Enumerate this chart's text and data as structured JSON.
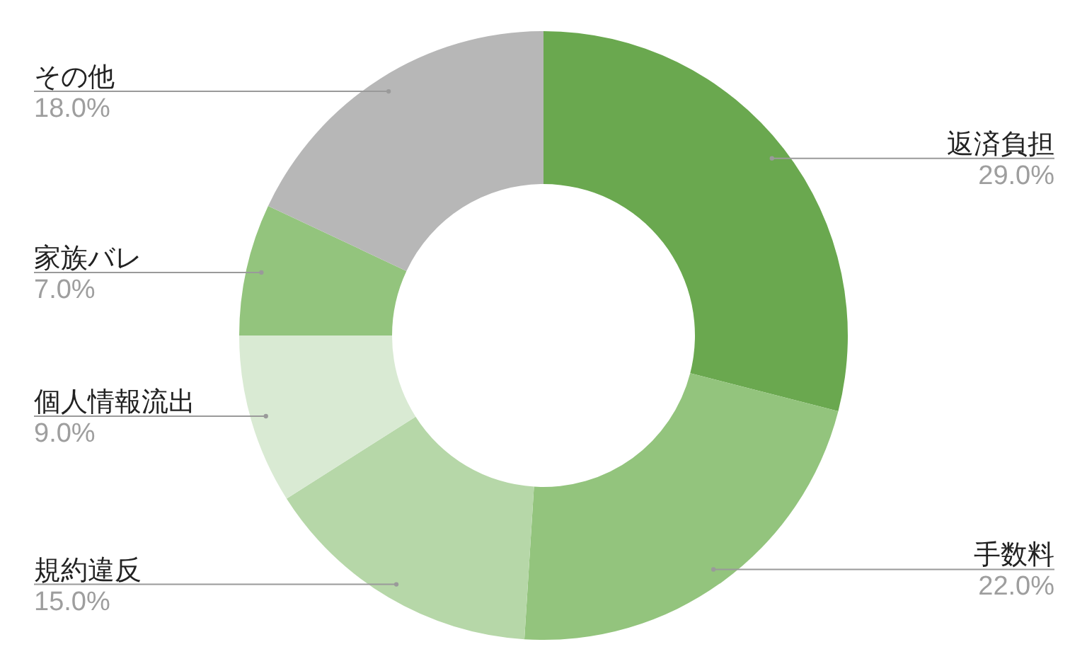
{
  "chart_data": {
    "type": "donut",
    "categories": [
      "返済負担",
      "手数料",
      "規約違反",
      "個人情報流出",
      "家族バレ",
      "その他"
    ],
    "values": [
      29,
      22,
      15,
      9,
      7,
      18
    ],
    "value_labels": [
      "29.0%",
      "22.0%",
      "15.0%",
      "9.0%",
      "7.0%",
      "18.0%"
    ],
    "colors": [
      "#6aa84f",
      "#93c47d",
      "#b6d7a8",
      "#d9ead3",
      "#93c47d",
      "#b7b7b7"
    ]
  }
}
